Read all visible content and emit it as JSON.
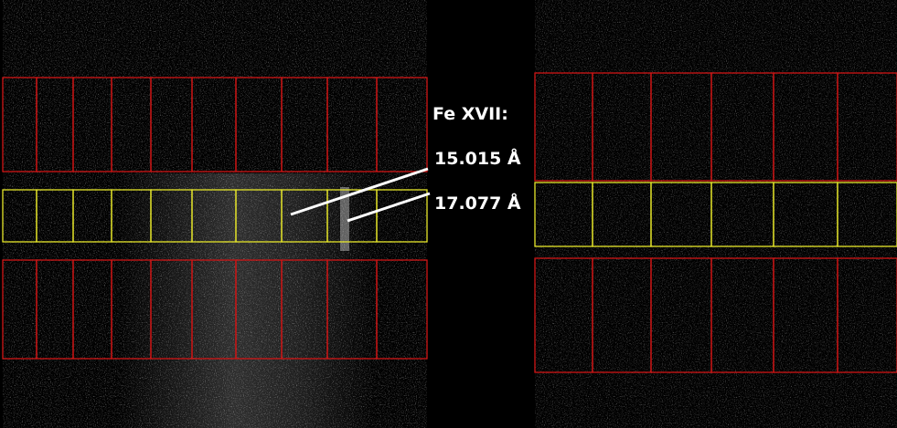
{
  "annotations": {
    "title": "Fe XVII:",
    "lines": [
      "15.015 Å",
      "17.077 Å"
    ]
  }
}
